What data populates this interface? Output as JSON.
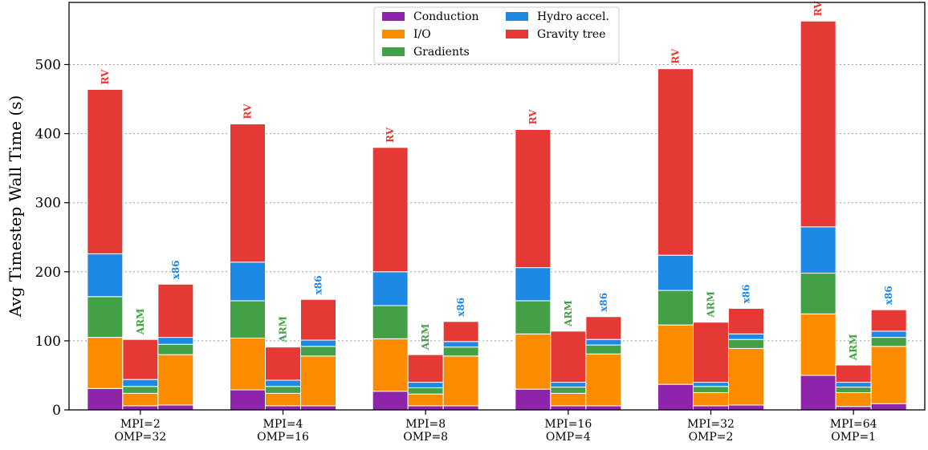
{
  "chart_data": {
    "type": "bar",
    "stacked": true,
    "ylabel": "Avg Timestep Wall Time (s)",
    "xlabel": "",
    "ylim": [
      0,
      590
    ],
    "yticks": [
      0,
      100,
      200,
      300,
      400,
      500
    ],
    "grid": "horizontal dotted",
    "legend_position": "top-center",
    "categories": [
      [
        "MPI=2",
        "OMP=32"
      ],
      [
        "MPI=4",
        "OMP=16"
      ],
      [
        "MPI=8",
        "OMP=8"
      ],
      [
        "MPI=16",
        "OMP=4"
      ],
      [
        "MPI=32",
        "OMP=2"
      ],
      [
        "MPI=64",
        "OMP=1"
      ]
    ],
    "architectures": [
      {
        "label": "RV",
        "color": "#e53935"
      },
      {
        "label": "ARM",
        "color": "#43a047"
      },
      {
        "label": "x86",
        "color": "#1e88e5"
      }
    ],
    "series": [
      {
        "name": "Conduction",
        "color": "#8e24aa"
      },
      {
        "name": "I/O",
        "color": "#fb8c00"
      },
      {
        "name": "Gradients",
        "color": "#43a047"
      },
      {
        "name": "Hydro accel.",
        "color": "#1e88e5"
      },
      {
        "name": "Gravity tree",
        "color": "#e53935"
      }
    ],
    "values": [
      [
        [
          31,
          74,
          59,
          62,
          238
        ],
        [
          6,
          18,
          10,
          10,
          58
        ],
        [
          7,
          73,
          15,
          10,
          77
        ]
      ],
      [
        [
          29,
          75,
          54,
          56,
          200
        ],
        [
          6,
          18,
          10,
          9,
          48
        ],
        [
          6,
          72,
          14,
          9,
          59
        ]
      ],
      [
        [
          27,
          76,
          48,
          49,
          180
        ],
        [
          6,
          17,
          9,
          8,
          40
        ],
        [
          6,
          72,
          13,
          8,
          29
        ]
      ],
      [
        [
          30,
          80,
          48,
          48,
          200
        ],
        [
          6,
          18,
          9,
          7,
          74
        ],
        [
          6,
          75,
          13,
          8,
          33
        ]
      ],
      [
        [
          37,
          86,
          50,
          51,
          270
        ],
        [
          6,
          19,
          9,
          6,
          87
        ],
        [
          7,
          82,
          13,
          8,
          37
        ]
      ],
      [
        [
          50,
          89,
          59,
          67,
          298
        ],
        [
          5,
          20,
          8,
          7,
          25
        ],
        [
          9,
          83,
          13,
          9,
          31
        ]
      ]
    ]
  }
}
